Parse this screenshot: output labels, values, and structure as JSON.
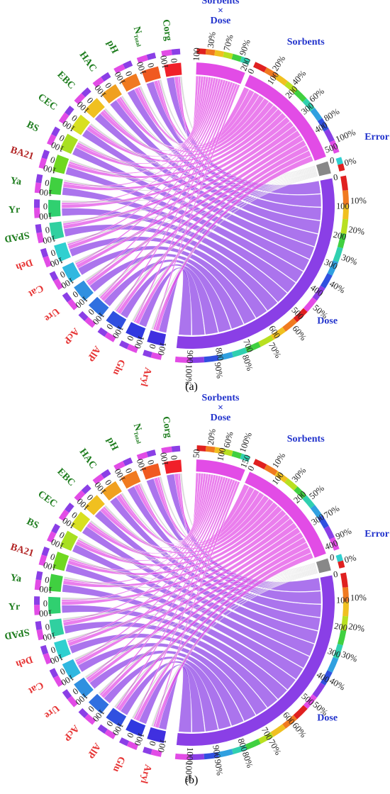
{
  "colors": {
    "soil": "#1e7d1e",
    "enzyme": "#e63333",
    "ba21": "#b22222",
    "factor": "#2233cc",
    "magenta_ribbon": "#e24ce6",
    "violet_ribbon": "#8a3fe6"
  },
  "panels": [
    {
      "caption": "(a)",
      "sorbents_dose_label": [
        "Sorbents",
        "×",
        "Dose"
      ],
      "sorbents_dose_ticks": [
        "30%",
        "70%",
        "90%"
      ],
      "sorbents_label": "Sorbents",
      "sorbents_pct": [
        "20%",
        "40%",
        "60%",
        "80%",
        "100%"
      ],
      "sorbents_num": [
        "0",
        "100",
        "200",
        "300",
        "400",
        "500"
      ],
      "sd_num": [
        "100",
        "200"
      ],
      "error_label": "Error",
      "error_pct": [
        "0%"
      ],
      "dose_label": "Dose",
      "dose_pct": [
        "10%",
        "20%",
        "30%",
        "40%",
        "50%",
        "60%",
        "70%",
        "80%",
        "90%",
        "100%"
      ],
      "dose_num": [
        "0",
        "100",
        "200",
        "300",
        "400",
        "500",
        "600",
        "700",
        "800",
        "900"
      ],
      "variables": [
        {
          "name": "Corg",
          "group": "soil",
          "ring_color": "#f0202a",
          "ticks": [
            "100",
            "0"
          ]
        },
        {
          "name": "NTotal",
          "group": "soil",
          "ring_color": "#f05a20",
          "ticks": [
            "100",
            "0"
          ]
        },
        {
          "name": "pH",
          "group": "soil",
          "ring_color": "#f07a20",
          "ticks": [
            "100",
            "0"
          ]
        },
        {
          "name": "HAC",
          "group": "soil",
          "ring_color": "#f0a020",
          "ticks": [
            "100",
            "0"
          ]
        },
        {
          "name": "EBC",
          "group": "soil",
          "ring_color": "#f0c020",
          "ticks": [
            "100",
            "0"
          ]
        },
        {
          "name": "CEC",
          "group": "soil",
          "ring_color": "#d8e020",
          "ticks": [
            "100",
            "0"
          ]
        },
        {
          "name": "BS",
          "group": "soil",
          "ring_color": "#a8e020",
          "ticks": [
            "100",
            "0"
          ]
        },
        {
          "name": "BA21",
          "group": "ba21",
          "ring_color": "#70d820",
          "ticks": [
            "100",
            "0"
          ]
        },
        {
          "name": "Ya",
          "group": "soil",
          "ring_color": "#40d040",
          "ticks": [
            "100",
            "0"
          ]
        },
        {
          "name": "Yr",
          "group": "soil",
          "ring_color": "#30d070",
          "ticks": [
            "100",
            "0"
          ]
        },
        {
          "name": "SPAD",
          "group": "soil",
          "ring_color": "#30d0a0",
          "ticks": [
            "100",
            "0"
          ]
        },
        {
          "name": "Deh",
          "group": "enzyme",
          "ring_color": "#30d0d0",
          "ticks": [
            "100",
            "0"
          ]
        },
        {
          "name": "Cat",
          "group": "enzyme",
          "ring_color": "#30b8e0",
          "ticks": [
            "100",
            "0"
          ]
        },
        {
          "name": "Ure",
          "group": "enzyme",
          "ring_color": "#3090e0",
          "ticks": [
            "100",
            "0"
          ]
        },
        {
          "name": "AcP",
          "group": "enzyme",
          "ring_color": "#3070e0",
          "ticks": [
            "100",
            "0"
          ]
        },
        {
          "name": "AlP",
          "group": "enzyme",
          "ring_color": "#3050e0",
          "ticks": [
            "100",
            "0"
          ]
        },
        {
          "name": "Glu",
          "group": "enzyme",
          "ring_color": "#3038e0",
          "ticks": [
            "100",
            "0"
          ]
        },
        {
          "name": "Aryl",
          "group": "enzyme",
          "ring_color": "#4030e0",
          "ticks": [
            "100",
            "0"
          ]
        }
      ]
    },
    {
      "caption": "(b)",
      "sorbents_dose_label": [
        "Sorbents",
        "×",
        "Dose"
      ],
      "sorbents_dose_ticks": [
        "20%",
        "60%",
        "100%"
      ],
      "sorbents_label": "Sorbents",
      "sorbents_pct": [
        "10%",
        "30%",
        "50%",
        "70%",
        "90%"
      ],
      "sorbents_num": [
        "0",
        "100",
        "200",
        "300",
        "400"
      ],
      "sd_num": [
        "50",
        "100",
        "150"
      ],
      "error_label": "Error",
      "error_pct": [
        "0%"
      ],
      "dose_label": "Dose",
      "dose_pct": [
        "10%",
        "20%",
        "30%",
        "40%",
        "50%",
        "60%",
        "70%",
        "80%",
        "90%",
        "100%"
      ],
      "dose_num": [
        "0",
        "100",
        "200",
        "300",
        "400",
        "500",
        "600",
        "700",
        "800",
        "900",
        "1000"
      ],
      "variables": [
        {
          "name": "Corg",
          "group": "soil",
          "ring_color": "#f0202a",
          "ticks": [
            "100",
            "0"
          ]
        },
        {
          "name": "NTotal",
          "group": "soil",
          "ring_color": "#f05a20",
          "ticks": [
            "100",
            "0"
          ]
        },
        {
          "name": "pH",
          "group": "soil",
          "ring_color": "#f07a20",
          "ticks": [
            "100",
            "0"
          ]
        },
        {
          "name": "HAC",
          "group": "soil",
          "ring_color": "#f0a020",
          "ticks": [
            "100",
            "0"
          ]
        },
        {
          "name": "EBC",
          "group": "soil",
          "ring_color": "#f0c020",
          "ticks": [
            "100",
            "0"
          ]
        },
        {
          "name": "CEC",
          "group": "soil",
          "ring_color": "#d8e020",
          "ticks": [
            "100",
            "0"
          ]
        },
        {
          "name": "BS",
          "group": "soil",
          "ring_color": "#a8e020",
          "ticks": [
            "100",
            "0"
          ]
        },
        {
          "name": "BA21",
          "group": "ba21",
          "ring_color": "#70d820",
          "ticks": [
            "100",
            "0"
          ]
        },
        {
          "name": "Ya",
          "group": "soil",
          "ring_color": "#40d040",
          "ticks": [
            "100",
            "0"
          ]
        },
        {
          "name": "Yr",
          "group": "soil",
          "ring_color": "#30d070",
          "ticks": [
            "100",
            "0"
          ]
        },
        {
          "name": "SPAD",
          "group": "soil",
          "ring_color": "#30d0a0",
          "ticks": [
            "100",
            "0"
          ]
        },
        {
          "name": "Deh",
          "group": "enzyme",
          "ring_color": "#30d0d0",
          "ticks": [
            "100",
            "0"
          ]
        },
        {
          "name": "Cat",
          "group": "enzyme",
          "ring_color": "#30b8e0",
          "ticks": [
            "100",
            "0"
          ]
        },
        {
          "name": "Ure",
          "group": "enzyme",
          "ring_color": "#3090e0",
          "ticks": [
            "100",
            "0"
          ]
        },
        {
          "name": "AcP",
          "group": "enzyme",
          "ring_color": "#3070e0",
          "ticks": [
            "100",
            "0"
          ]
        },
        {
          "name": "AlP",
          "group": "enzyme",
          "ring_color": "#3050e0",
          "ticks": [
            "100",
            "0"
          ]
        },
        {
          "name": "Glu",
          "group": "enzyme",
          "ring_color": "#3038e0",
          "ticks": [
            "100",
            "0"
          ]
        },
        {
          "name": "Aryl",
          "group": "enzyme",
          "ring_color": "#4030e0",
          "ticks": [
            "100",
            "0"
          ]
        }
      ]
    }
  ]
}
